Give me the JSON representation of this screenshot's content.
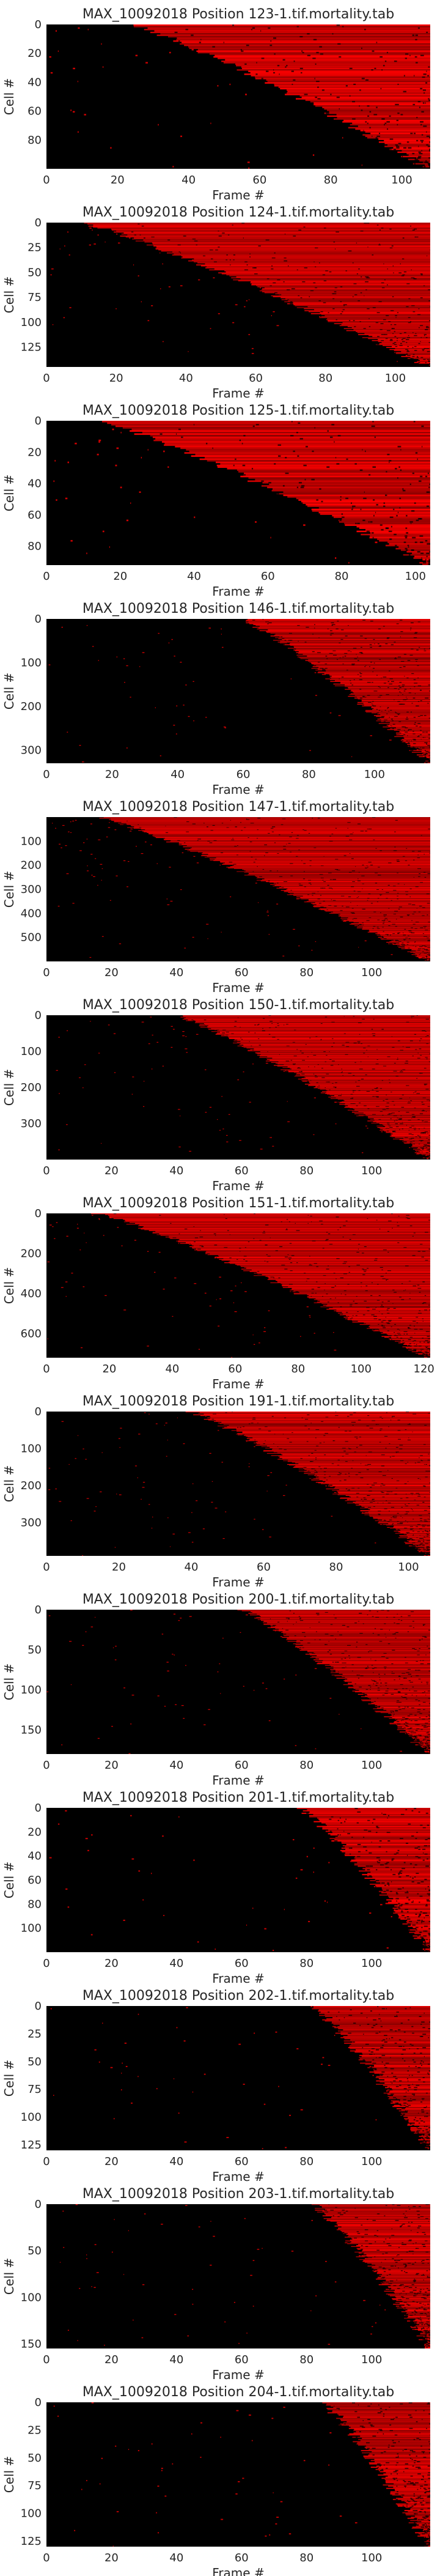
{
  "chart_data": [
    {
      "type": "heatmap",
      "title": "MAX_10092018 Position 123-1.tif.mortality.tab",
      "xlabel": "Frame #",
      "ylabel": "Cell #",
      "x_range": [
        0,
        108
      ],
      "y_range": [
        0,
        100
      ],
      "x_ticks": [
        0,
        20,
        40,
        60,
        80,
        100
      ],
      "y_ticks": [
        0,
        20,
        40,
        60,
        80
      ],
      "onset_frame_range": [
        24,
        108
      ],
      "colormap": [
        "#000000",
        "#ff0000"
      ]
    },
    {
      "type": "heatmap",
      "title": "MAX_10092018 Position 124-1.tif.mortality.tab",
      "xlabel": "Frame #",
      "ylabel": "Cell #",
      "x_range": [
        0,
        110
      ],
      "y_range": [
        0,
        145
      ],
      "x_ticks": [
        0,
        20,
        40,
        60,
        80,
        100
      ],
      "y_ticks": [
        0,
        25,
        50,
        75,
        100,
        125
      ],
      "onset_frame_range": [
        10,
        110
      ],
      "colormap": [
        "#000000",
        "#ff0000"
      ]
    },
    {
      "type": "heatmap",
      "title": "MAX_10092018 Position 125-1.tif.mortality.tab",
      "xlabel": "Frame #",
      "ylabel": "Cell #",
      "x_range": [
        0,
        104
      ],
      "y_range": [
        0,
        92
      ],
      "x_ticks": [
        0,
        20,
        40,
        60,
        80,
        100
      ],
      "y_ticks": [
        0,
        20,
        40,
        60,
        80
      ],
      "onset_frame_range": [
        14,
        104
      ],
      "colormap": [
        "#000000",
        "#ff0000"
      ]
    },
    {
      "type": "heatmap",
      "title": "MAX_10092018 Position 146-1.tif.mortality.tab",
      "xlabel": "Frame #",
      "ylabel": "Cell #",
      "x_range": [
        0,
        117
      ],
      "y_range": [
        0,
        330
      ],
      "x_ticks": [
        0,
        20,
        40,
        60,
        80,
        100
      ],
      "y_ticks": [
        0,
        100,
        200,
        300
      ],
      "onset_frame_range": [
        60,
        117
      ],
      "colormap": [
        "#000000",
        "#ff0000"
      ]
    },
    {
      "type": "heatmap",
      "title": "MAX_10092018 Position 147-1.tif.mortality.tab",
      "xlabel": "Frame #",
      "ylabel": "Cell #",
      "x_range": [
        0,
        118
      ],
      "y_range": [
        0,
        600
      ],
      "x_ticks": [
        0,
        20,
        40,
        60,
        80,
        100
      ],
      "y_ticks": [
        100,
        200,
        300,
        400,
        500
      ],
      "onset_frame_range": [
        16,
        118
      ],
      "colormap": [
        "#000000",
        "#ff0000"
      ]
    },
    {
      "type": "heatmap",
      "title": "MAX_10092018 Position 150-1.tif.mortality.tab",
      "xlabel": "Frame #",
      "ylabel": "Cell #",
      "x_range": [
        0,
        118
      ],
      "y_range": [
        0,
        400
      ],
      "x_ticks": [
        0,
        20,
        40,
        60,
        80,
        100
      ],
      "y_ticks": [
        0,
        100,
        200,
        300
      ],
      "onset_frame_range": [
        40,
        118
      ],
      "colormap": [
        "#000000",
        "#ff0000"
      ]
    },
    {
      "type": "heatmap",
      "title": "MAX_10092018 Position 151-1.tif.mortality.tab",
      "xlabel": "Frame #",
      "ylabel": "Cell #",
      "x_range": [
        0,
        122
      ],
      "y_range": [
        0,
        720
      ],
      "x_ticks": [
        0,
        20,
        40,
        60,
        80,
        100,
        120
      ],
      "y_ticks": [
        0,
        200,
        400,
        600
      ],
      "onset_frame_range": [
        16,
        122
      ],
      "colormap": [
        "#000000",
        "#ff0000"
      ]
    },
    {
      "type": "heatmap",
      "title": "MAX_10092018 Position 191-1.tif.mortality.tab",
      "xlabel": "Frame #",
      "ylabel": "Cell #",
      "x_range": [
        0,
        106
      ],
      "y_range": [
        0,
        390
      ],
      "x_ticks": [
        0,
        20,
        40,
        60,
        80,
        100
      ],
      "y_ticks": [
        0,
        100,
        200,
        300
      ],
      "onset_frame_range": [
        40,
        106
      ],
      "colormap": [
        "#000000",
        "#ff0000"
      ]
    },
    {
      "type": "heatmap",
      "title": "MAX_10092018 Position 200-1.tif.mortality.tab",
      "xlabel": "Frame #",
      "ylabel": "Cell #",
      "x_range": [
        0,
        118
      ],
      "y_range": [
        0,
        180
      ],
      "x_ticks": [
        0,
        20,
        40,
        60,
        80,
        100
      ],
      "y_ticks": [
        0,
        50,
        100,
        150
      ],
      "onset_frame_range": [
        60,
        118
      ],
      "colormap": [
        "#000000",
        "#ff0000"
      ]
    },
    {
      "type": "heatmap",
      "title": "MAX_10092018 Position 201-1.tif.mortality.tab",
      "xlabel": "Frame #",
      "ylabel": "Cell #",
      "x_range": [
        0,
        118
      ],
      "y_range": [
        0,
        120
      ],
      "x_ticks": [
        0,
        20,
        40,
        60,
        80,
        100
      ],
      "y_ticks": [
        0,
        20,
        40,
        60,
        80,
        100
      ],
      "onset_frame_range": [
        78,
        118
      ],
      "colormap": [
        "#000000",
        "#ff0000"
      ]
    },
    {
      "type": "heatmap",
      "title": "MAX_10092018 Position 202-1.tif.mortality.tab",
      "xlabel": "Frame #",
      "ylabel": "Cell #",
      "x_range": [
        0,
        118
      ],
      "y_range": [
        0,
        130
      ],
      "x_ticks": [
        0,
        20,
        40,
        60,
        80,
        100
      ],
      "y_ticks": [
        0,
        25,
        50,
        75,
        100,
        125
      ],
      "onset_frame_range": [
        82,
        118
      ],
      "colormap": [
        "#000000",
        "#ff0000"
      ]
    },
    {
      "type": "heatmap",
      "title": "MAX_10092018 Position 203-1.tif.mortality.tab",
      "xlabel": "Frame #",
      "ylabel": "Cell #",
      "x_range": [
        0,
        118
      ],
      "y_range": [
        0,
        155
      ],
      "x_ticks": [
        0,
        20,
        40,
        60,
        80,
        100
      ],
      "y_ticks": [
        0,
        50,
        100,
        150
      ],
      "onset_frame_range": [
        82,
        118
      ],
      "colormap": [
        "#000000",
        "#ff0000"
      ]
    },
    {
      "type": "heatmap",
      "title": "MAX_10092018 Position 204-1.tif.mortality.tab",
      "xlabel": "Frame #",
      "ylabel": "Cell #",
      "x_range": [
        0,
        118
      ],
      "y_range": [
        0,
        130
      ],
      "x_ticks": [
        0,
        20,
        40,
        60,
        80,
        100
      ],
      "y_ticks": [
        0,
        25,
        50,
        75,
        100,
        125
      ],
      "onset_frame_range": [
        85,
        118
      ],
      "colormap": [
        "#000000",
        "#ff0000"
      ]
    }
  ]
}
